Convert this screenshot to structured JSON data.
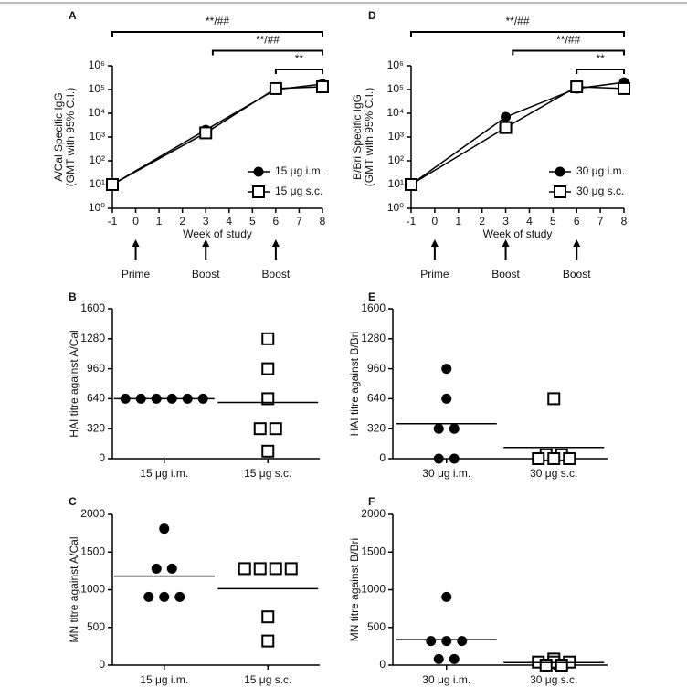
{
  "chart_data": [
    {
      "type": "line",
      "panel": "A",
      "xlabel": "Week of study",
      "ylabel": [
        "A/Cal Specific IgG",
        "(GMT with 95% C.I.)"
      ],
      "x": [
        -1,
        3,
        6,
        8
      ],
      "xlim": [
        -1,
        8
      ],
      "xticks": [
        -1,
        0,
        1,
        2,
        3,
        4,
        5,
        6,
        7,
        8
      ],
      "ylim": [
        1,
        1000000
      ],
      "yscale": "log",
      "yticks": [
        {
          "value": 1,
          "label": "10⁰"
        },
        {
          "value": 10,
          "label": "10¹"
        },
        {
          "value": 100,
          "label": "10²"
        },
        {
          "value": 1000,
          "label": "10³"
        },
        {
          "value": 10000,
          "label": "10⁴"
        },
        {
          "value": 100000,
          "label": "10⁵"
        },
        {
          "value": 1000000,
          "label": "10⁶"
        }
      ],
      "series": [
        {
          "name": "15 μg i.m.",
          "marker": "circle",
          "color": "#000000",
          "values": [
            10,
            2000,
            100000,
            170000
          ]
        },
        {
          "name": "15 μg s.c.",
          "marker": "square",
          "color": "#000000",
          "values": [
            10,
            1500,
            110000,
            130000
          ]
        }
      ],
      "legend": "lower right",
      "brackets": [
        {
          "label": "**/##",
          "x": [
            -1,
            8
          ]
        },
        {
          "label": "**/##",
          "x": [
            3.3,
            8
          ]
        },
        {
          "label": "**",
          "x": [
            6,
            8
          ]
        }
      ],
      "arrows": [
        {
          "label": "Prime",
          "x": 0
        },
        {
          "label": "Boost",
          "x": 3
        },
        {
          "label": "Boost",
          "x": 6
        }
      ]
    },
    {
      "type": "strip",
      "panel": "B",
      "ylabel": "HAI titre against A/Cal",
      "categories": [
        "15 μg i.m.",
        "15 μg s.c."
      ],
      "ylim": [
        0,
        1600
      ],
      "yticks": [
        0,
        320,
        640,
        960,
        1280,
        1600
      ],
      "groups": [
        {
          "marker": "circle",
          "values": [
            640,
            640,
            640,
            640,
            640,
            640
          ],
          "mean": 640
        },
        {
          "marker": "square",
          "values": [
            1280,
            960,
            640,
            320,
            320,
            80
          ],
          "mean": 600
        }
      ]
    },
    {
      "type": "strip",
      "panel": "C",
      "ylabel": "MN titre against A/Cal",
      "categories": [
        "15 μg i.m.",
        "15 μg s.c."
      ],
      "ylim": [
        0,
        2000
      ],
      "yticks": [
        0,
        500,
        1000,
        1500,
        2000
      ],
      "groups": [
        {
          "marker": "circle",
          "values": [
            1810,
            1280,
            1280,
            905,
            905,
            905
          ],
          "mean": 1181
        },
        {
          "marker": "square",
          "values": [
            1280,
            1280,
            1280,
            1280,
            640,
            320
          ],
          "mean": 1013
        }
      ]
    },
    {
      "type": "line",
      "panel": "D",
      "xlabel": "Week of study",
      "ylabel": [
        "B/Bri Specific IgG",
        "(GMT with 95% C.I.)"
      ],
      "x": [
        -1,
        3,
        6,
        8
      ],
      "xlim": [
        -1,
        8
      ],
      "xticks": [
        -1,
        0,
        1,
        2,
        3,
        4,
        5,
        6,
        7,
        8
      ],
      "ylim": [
        1,
        1000000
      ],
      "yscale": "log",
      "yticks": [
        {
          "value": 1,
          "label": "10⁰"
        },
        {
          "value": 10,
          "label": "10¹"
        },
        {
          "value": 100,
          "label": "10²"
        },
        {
          "value": 1000,
          "label": "10³"
        },
        {
          "value": 10000,
          "label": "10⁴"
        },
        {
          "value": 100000,
          "label": "10⁵"
        },
        {
          "value": 1000000,
          "label": "10⁶"
        }
      ],
      "series": [
        {
          "name": "30 μg i.m.",
          "marker": "circle",
          "color": "#000000",
          "values": [
            10,
            7000,
            110000,
            200000
          ]
        },
        {
          "name": "30 μg s.c.",
          "marker": "square",
          "color": "#000000",
          "values": [
            10,
            2500,
            130000,
            110000
          ]
        }
      ],
      "legend": "lower right",
      "brackets": [
        {
          "label": "**/##",
          "x": [
            -1,
            8
          ]
        },
        {
          "label": "**/##",
          "x": [
            3.3,
            8
          ]
        },
        {
          "label": "**",
          "x": [
            6,
            8
          ]
        }
      ],
      "arrows": [
        {
          "label": "Prime",
          "x": 0
        },
        {
          "label": "Boost",
          "x": 3
        },
        {
          "label": "Boost",
          "x": 6
        }
      ]
    },
    {
      "type": "strip",
      "panel": "E",
      "ylabel": "HAI titre against B/Bri",
      "categories": [
        "30 μg i.m.",
        "30 μg s.c."
      ],
      "ylim": [
        0,
        1600
      ],
      "yticks": [
        0,
        320,
        640,
        960,
        1280,
        1600
      ],
      "groups": [
        {
          "marker": "circle",
          "values": [
            960,
            640,
            320,
            320,
            0,
            0
          ],
          "mean": 373
        },
        {
          "marker": "square",
          "values": [
            640,
            40,
            40,
            0,
            0,
            0
          ],
          "mean": 120
        }
      ]
    },
    {
      "type": "strip",
      "panel": "F",
      "ylabel": "MN titre against B/Bri",
      "categories": [
        "30 μg i.m.",
        "30 μg s.c."
      ],
      "ylim": [
        0,
        2000
      ],
      "yticks": [
        0,
        500,
        1000,
        1500,
        2000
      ],
      "groups": [
        {
          "marker": "circle",
          "values": [
            905,
            320,
            320,
            320,
            80,
            80
          ],
          "mean": 338
        },
        {
          "marker": "square",
          "values": [
            80,
            40,
            40,
            40,
            0,
            0
          ],
          "mean": 33
        }
      ]
    }
  ]
}
